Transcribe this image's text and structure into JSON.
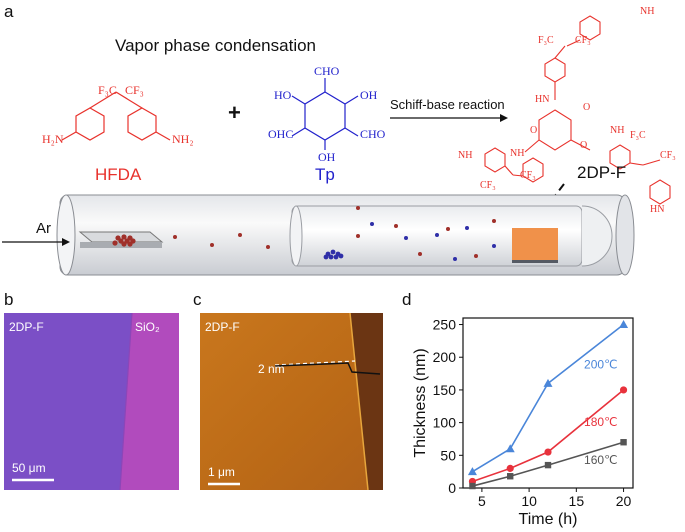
{
  "panels": {
    "a": {
      "letter": "a",
      "title": "Vapor phase condensation",
      "reactant1": {
        "name": "HFDA",
        "groups": [
          "F₃C",
          "CF₃",
          "H₂N",
          "NH₂"
        ],
        "color": "#e8322c"
      },
      "plus": "+",
      "reactant2": {
        "name": "Tp",
        "groups": [
          "CHO",
          "HO",
          "OH",
          "OHC",
          "CHO",
          "OH"
        ],
        "color": "#2222cc"
      },
      "reaction_label": "Schiff-base reaction",
      "product": {
        "name": "2DP-F",
        "groups": [
          "NH",
          "F₃C",
          "CF₃",
          "HN",
          "O",
          "O",
          "NH",
          "O",
          "NH",
          "CF₃",
          "CF₃",
          "F₃C",
          "CF₃",
          "NH",
          "HN"
        ]
      },
      "gas_label": "Ar"
    },
    "b": {
      "letter": "b",
      "film_label": "2DP-F",
      "substrate_label": "SiO₂",
      "scale_bar": "50 μm",
      "film_color": "#7b4fc6",
      "substrate_color": "#b14bbd"
    },
    "c": {
      "letter": "c",
      "film_label": "2DP-F",
      "height_label": "2 nm",
      "scale_bar": "1 μm"
    },
    "d": {
      "letter": "d"
    }
  },
  "chart_data": {
    "type": "line",
    "xlabel": "Time (h)",
    "ylabel": "Thickness (nm)",
    "xlim": [
      3,
      21
    ],
    "ylim": [
      0,
      260
    ],
    "xticks": [
      5,
      10,
      15,
      20
    ],
    "yticks": [
      0,
      50,
      100,
      150,
      200,
      250
    ],
    "grid": false,
    "series": [
      {
        "name": "200℃",
        "color": "#4a86d9",
        "marker": "triangle",
        "x": [
          4,
          8,
          12,
          20
        ],
        "y": [
          25,
          60,
          160,
          250
        ]
      },
      {
        "name": "180℃",
        "color": "#e8323c",
        "marker": "circle",
        "x": [
          4,
          8,
          12,
          20
        ],
        "y": [
          10,
          30,
          55,
          150
        ]
      },
      {
        "name": "160℃",
        "color": "#555555",
        "marker": "square",
        "x": [
          4,
          8,
          12,
          20
        ],
        "y": [
          3,
          18,
          35,
          70
        ]
      }
    ]
  }
}
